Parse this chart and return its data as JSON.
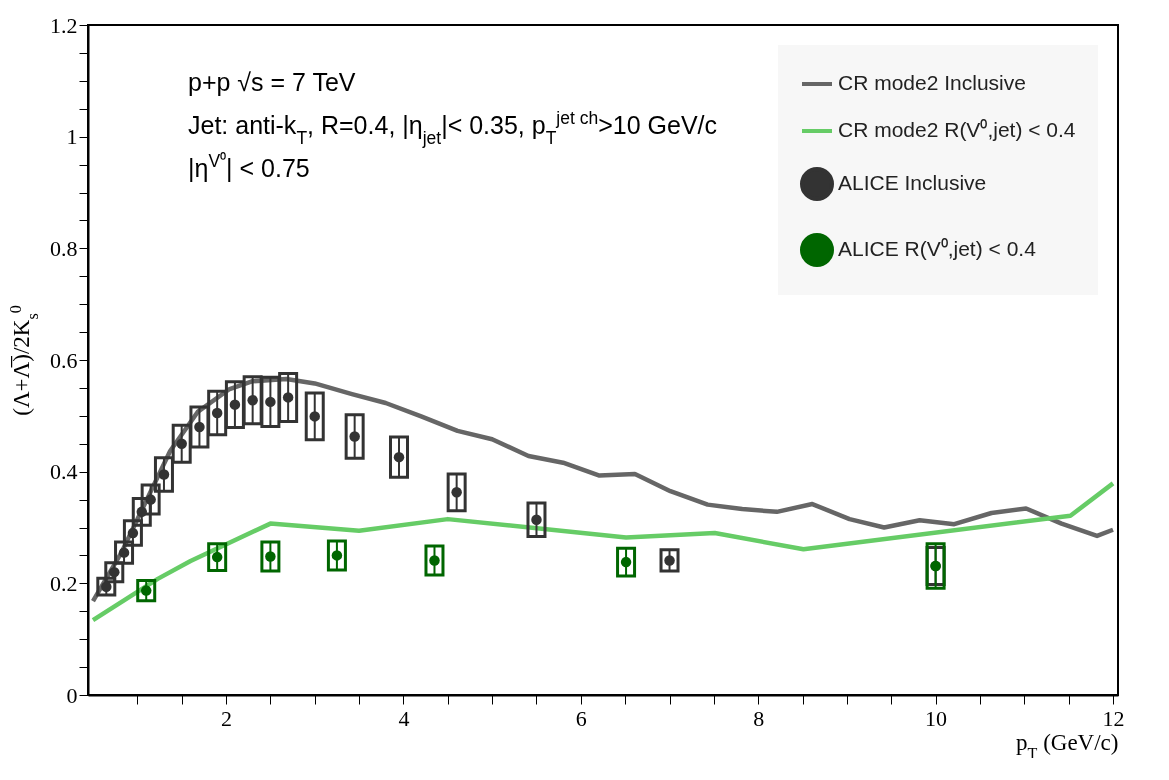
{
  "chart_data": {
    "type": "line",
    "xlabel": "p$_{T}$ (GeV/c)",
    "ylabel": "(Λ+Λ̅)/2K$_{s}$$^{0}$",
    "annotations": [
      "p+p √s = 7 TeV",
      "Jet: anti-k$_{T}$, R=0.4, |η$_{jet}$|< 0.35,  p$_{T}$$^{jet ch}$>10 GeV/c",
      "|η$^{V⁰}$| < 0.75"
    ],
    "xlim": [
      0.5,
      12
    ],
    "ylim": [
      0,
      1.2
    ],
    "xticks": [
      {
        "value": 1,
        "label": null
      },
      {
        "value": 1.5,
        "label": null
      },
      2,
      {
        "value": 2.5,
        "label": null
      },
      {
        "value": 3,
        "label": null
      },
      {
        "value": 3.5,
        "label": null
      },
      4,
      {
        "value": 4.5,
        "label": null
      },
      {
        "value": 5,
        "label": null
      },
      {
        "value": 5.5,
        "label": null
      },
      6,
      {
        "value": 6.5,
        "label": null
      },
      {
        "value": 7,
        "label": null
      },
      {
        "value": 7.5,
        "label": null
      },
      8,
      {
        "value": 8.5,
        "label": null
      },
      {
        "value": 9,
        "label": null
      },
      {
        "value": 9.5,
        "label": null
      },
      10,
      {
        "value": 10.5,
        "label": null
      },
      {
        "value": 11,
        "label": null
      },
      {
        "value": 11.5,
        "label": null
      },
      12
    ],
    "yticks": [
      0,
      {
        "value": 0.05,
        "label": null
      },
      {
        "value": 0.1,
        "label": null
      },
      {
        "value": 0.15,
        "label": null
      },
      0.2,
      {
        "value": 0.25,
        "label": null
      },
      {
        "value": 0.3,
        "label": null
      },
      {
        "value": 0.35,
        "label": null
      },
      0.4,
      {
        "value": 0.45,
        "label": null
      },
      {
        "value": 0.5,
        "label": null
      },
      {
        "value": 0.55,
        "label": null
      },
      0.6,
      {
        "value": 0.65,
        "label": null
      },
      {
        "value": 0.7,
        "label": null
      },
      {
        "value": 0.75,
        "label": null
      },
      0.8,
      {
        "value": 0.85,
        "label": null
      },
      {
        "value": 0.9,
        "label": null
      },
      {
        "value": 0.95,
        "label": null
      },
      1,
      {
        "value": 1.05,
        "label": null
      },
      {
        "value": 1.1,
        "label": null
      },
      {
        "value": 1.15,
        "label": null
      },
      1.2
    ],
    "grid": false,
    "legend": "top right",
    "series": [
      {
        "name": "CR mode2 Inclusive",
        "color": "#666666",
        "x": [
          0.5,
          0.82,
          1.37,
          1.68,
          2.04,
          2.3,
          2.68,
          3.0,
          3.42,
          3.8,
          4.2,
          4.61,
          5.0,
          5.41,
          5.8,
          6.21,
          6.61,
          7.01,
          7.43,
          7.82,
          8.21,
          8.61,
          9.03,
          9.42,
          9.82,
          10.21,
          10.63,
          11.02,
          11.42,
          11.82,
          12.0
        ],
        "values": [
          0.168,
          0.255,
          0.437,
          0.507,
          0.548,
          0.562,
          0.566,
          0.558,
          0.539,
          0.523,
          0.499,
          0.473,
          0.458,
          0.428,
          0.416,
          0.393,
          0.396,
          0.365,
          0.341,
          0.333,
          0.328,
          0.342,
          0.315,
          0.3,
          0.313,
          0.306,
          0.326,
          0.334,
          0.307,
          0.285,
          0.296
        ]
      },
      {
        "name": "CR mode2 R(V⁰,jet) < 0.4",
        "color": "#66cc66",
        "x": [
          0.5,
          1.23,
          1.6,
          2.5,
          3.5,
          4.5,
          6.51,
          7.51,
          8.51,
          11.52,
          12.0
        ],
        "values": [
          0.134,
          0.208,
          0.24,
          0.307,
          0.294,
          0.315,
          0.282,
          0.29,
          0.261,
          0.321,
          0.379
        ]
      },
      {
        "name": "ALICE Inclusive",
        "type": "scatter",
        "marker": "circle",
        "color": "#333333",
        "x": [
          0.65,
          0.74,
          0.85,
          0.95,
          1.05,
          1.15,
          1.3,
          1.5,
          1.7,
          1.9,
          2.1,
          2.3,
          2.5,
          2.7,
          3.0,
          3.45,
          3.95,
          4.6,
          5.5,
          7.0,
          10.0
        ],
        "values": [
          0.194,
          0.22,
          0.255,
          0.29,
          0.328,
          0.35,
          0.395,
          0.45,
          0.48,
          0.505,
          0.52,
          0.528,
          0.525,
          0.533,
          0.499,
          0.463,
          0.426,
          0.363,
          0.314,
          0.241,
          0.231
        ],
        "errors": [
          0.015,
          0.017,
          0.019,
          0.022,
          0.024,
          0.026,
          0.03,
          0.033,
          0.036,
          0.039,
          0.041,
          0.042,
          0.044,
          0.043,
          0.042,
          0.039,
          0.036,
          0.033,
          0.03,
          0.019,
          0.033
        ]
      },
      {
        "name": "ALICE R(V⁰,jet) < 0.4",
        "type": "scatter",
        "marker": "circle",
        "color": "#006600",
        "x": [
          1.1,
          1.9,
          2.5,
          3.25,
          4.35,
          6.51,
          10.0
        ],
        "values": [
          0.187,
          0.247,
          0.248,
          0.25,
          0.241,
          0.238,
          0.231
        ],
        "errors": [
          0.018,
          0.024,
          0.026,
          0.026,
          0.026,
          0.025,
          0.04
        ]
      }
    ]
  }
}
